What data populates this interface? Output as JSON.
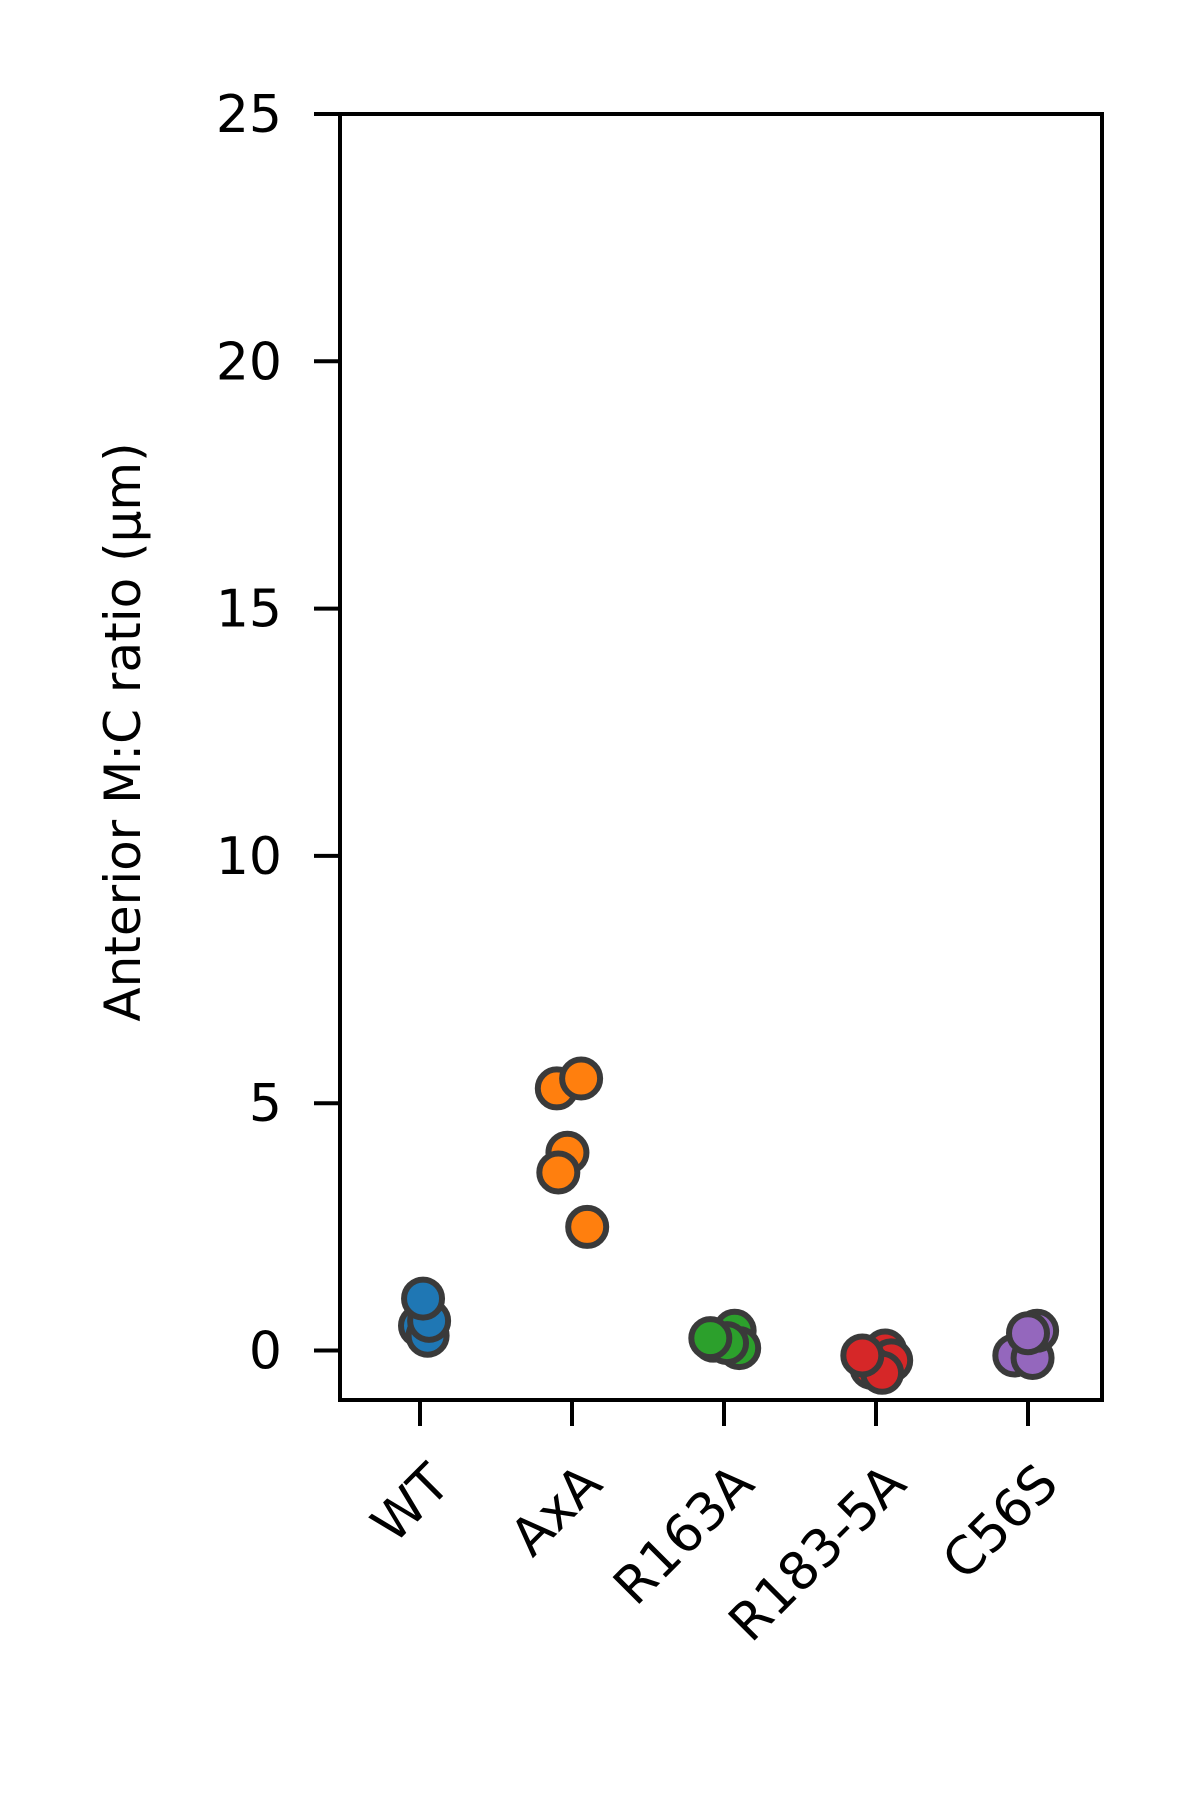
{
  "chart_data": {
    "type": "scatter",
    "style": "strip plot with jitter",
    "title": "",
    "xlabel": "",
    "ylabel": "Anterior M:C ratio (µm)",
    "ylim": [
      -1,
      25
    ],
    "yticks": [
      0,
      5,
      10,
      15,
      20,
      25
    ],
    "grid": false,
    "categories": [
      "WT",
      "AxA",
      "R163A",
      "R183-5A",
      "C56S"
    ],
    "marker_edge_color": "#3a3a3a",
    "series": [
      {
        "name": "WT",
        "color": "#1f77b4",
        "points": [
          {
            "jitter": 0.0,
            "y": 0.5
          },
          {
            "jitter": 0.05,
            "y": 0.3
          },
          {
            "jitter": 0.06,
            "y": 0.6
          },
          {
            "jitter": 0.02,
            "y": 1.05
          }
        ]
      },
      {
        "name": "AxA",
        "color": "#ff7f0e",
        "points": [
          {
            "jitter": -0.1,
            "y": 5.3
          },
          {
            "jitter": 0.06,
            "y": 5.5
          },
          {
            "jitter": -0.03,
            "y": 4.0
          },
          {
            "jitter": -0.09,
            "y": 3.6
          },
          {
            "jitter": 0.1,
            "y": 2.5
          }
        ]
      },
      {
        "name": "R163A",
        "color": "#2ca02c",
        "points": [
          {
            "jitter": -0.07,
            "y": 0.2
          },
          {
            "jitter": 0.07,
            "y": 0.4
          },
          {
            "jitter": 0.1,
            "y": 0.05
          },
          {
            "jitter": 0.02,
            "y": 0.15
          },
          {
            "jitter": -0.09,
            "y": 0.25
          }
        ]
      },
      {
        "name": "R183-5A",
        "color": "#d62728",
        "points": [
          {
            "jitter": 0.06,
            "y": 0.0
          },
          {
            "jitter": 0.1,
            "y": -0.2
          },
          {
            "jitter": -0.03,
            "y": -0.35
          },
          {
            "jitter": 0.04,
            "y": -0.45
          },
          {
            "jitter": -0.09,
            "y": -0.1
          }
        ]
      },
      {
        "name": "C56S",
        "color": "#9467bd",
        "points": [
          {
            "jitter": -0.09,
            "y": -0.1
          },
          {
            "jitter": 0.03,
            "y": -0.15
          },
          {
            "jitter": 0.06,
            "y": 0.4
          },
          {
            "jitter": 0.0,
            "y": 0.35
          }
        ]
      }
    ]
  }
}
